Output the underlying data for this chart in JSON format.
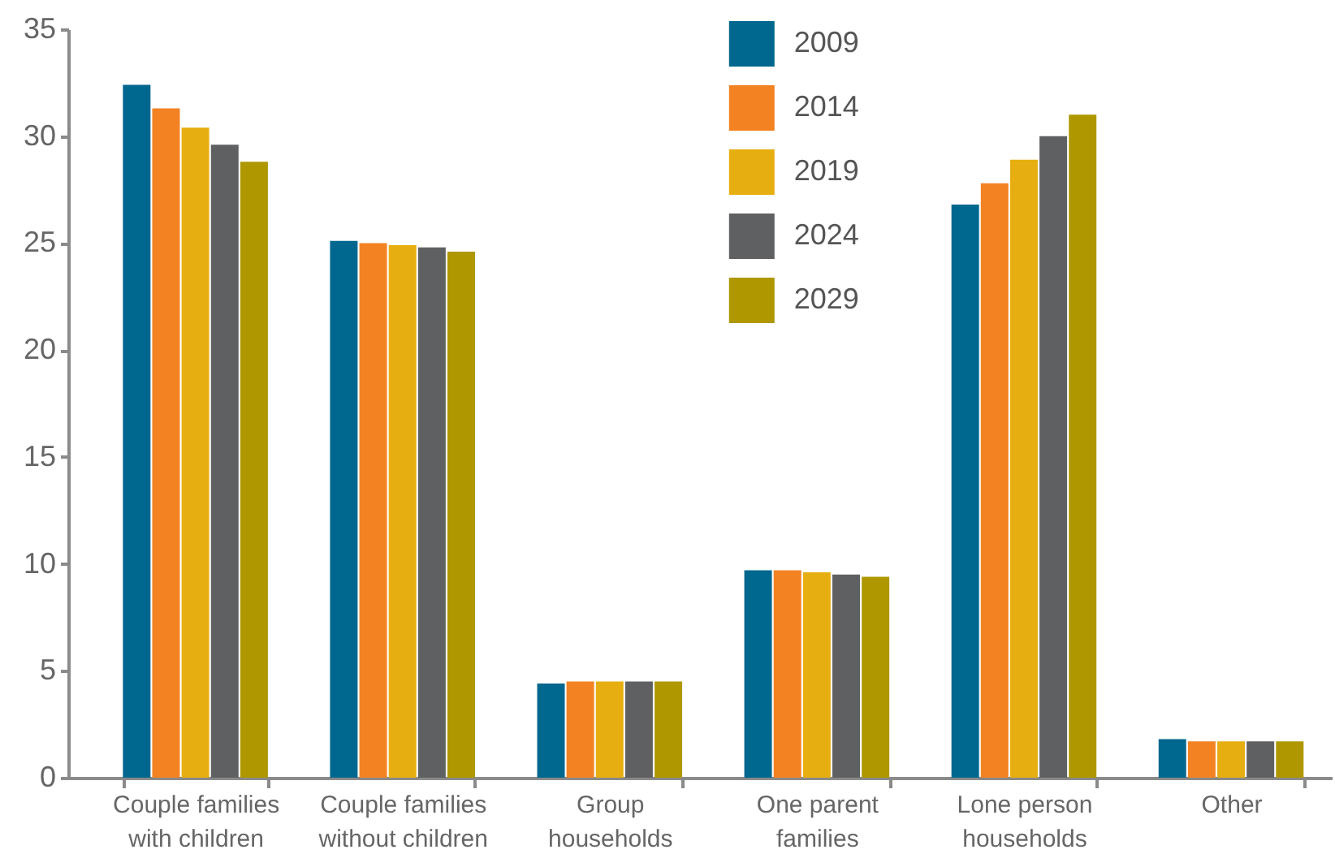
{
  "chart_data": {
    "type": "bar",
    "categories": [
      "Couple families with children",
      "Couple families without children",
      "Group households",
      "One parent families",
      "Lone person households",
      "Other"
    ],
    "series": [
      {
        "name": "2009",
        "color": "#00678e",
        "values": [
          32.4,
          25.1,
          4.4,
          9.7,
          26.8,
          1.8
        ]
      },
      {
        "name": "2014",
        "color": "#f38222",
        "values": [
          31.3,
          25.0,
          4.5,
          9.7,
          27.8,
          1.7
        ]
      },
      {
        "name": "2019",
        "color": "#e7ae11",
        "values": [
          30.4,
          24.9,
          4.5,
          9.6,
          28.9,
          1.7
        ]
      },
      {
        "name": "2024",
        "color": "#5f6062",
        "values": [
          29.6,
          24.8,
          4.5,
          9.5,
          30.0,
          1.7
        ]
      },
      {
        "name": "2029",
        "color": "#af9700",
        "values": [
          28.8,
          24.6,
          4.5,
          9.4,
          31.0,
          1.7
        ]
      }
    ],
    "ylim": [
      0,
      35
    ],
    "yticks": [
      0,
      5,
      10,
      15,
      20,
      25,
      30,
      35
    ],
    "grid": false,
    "legend": "top"
  }
}
